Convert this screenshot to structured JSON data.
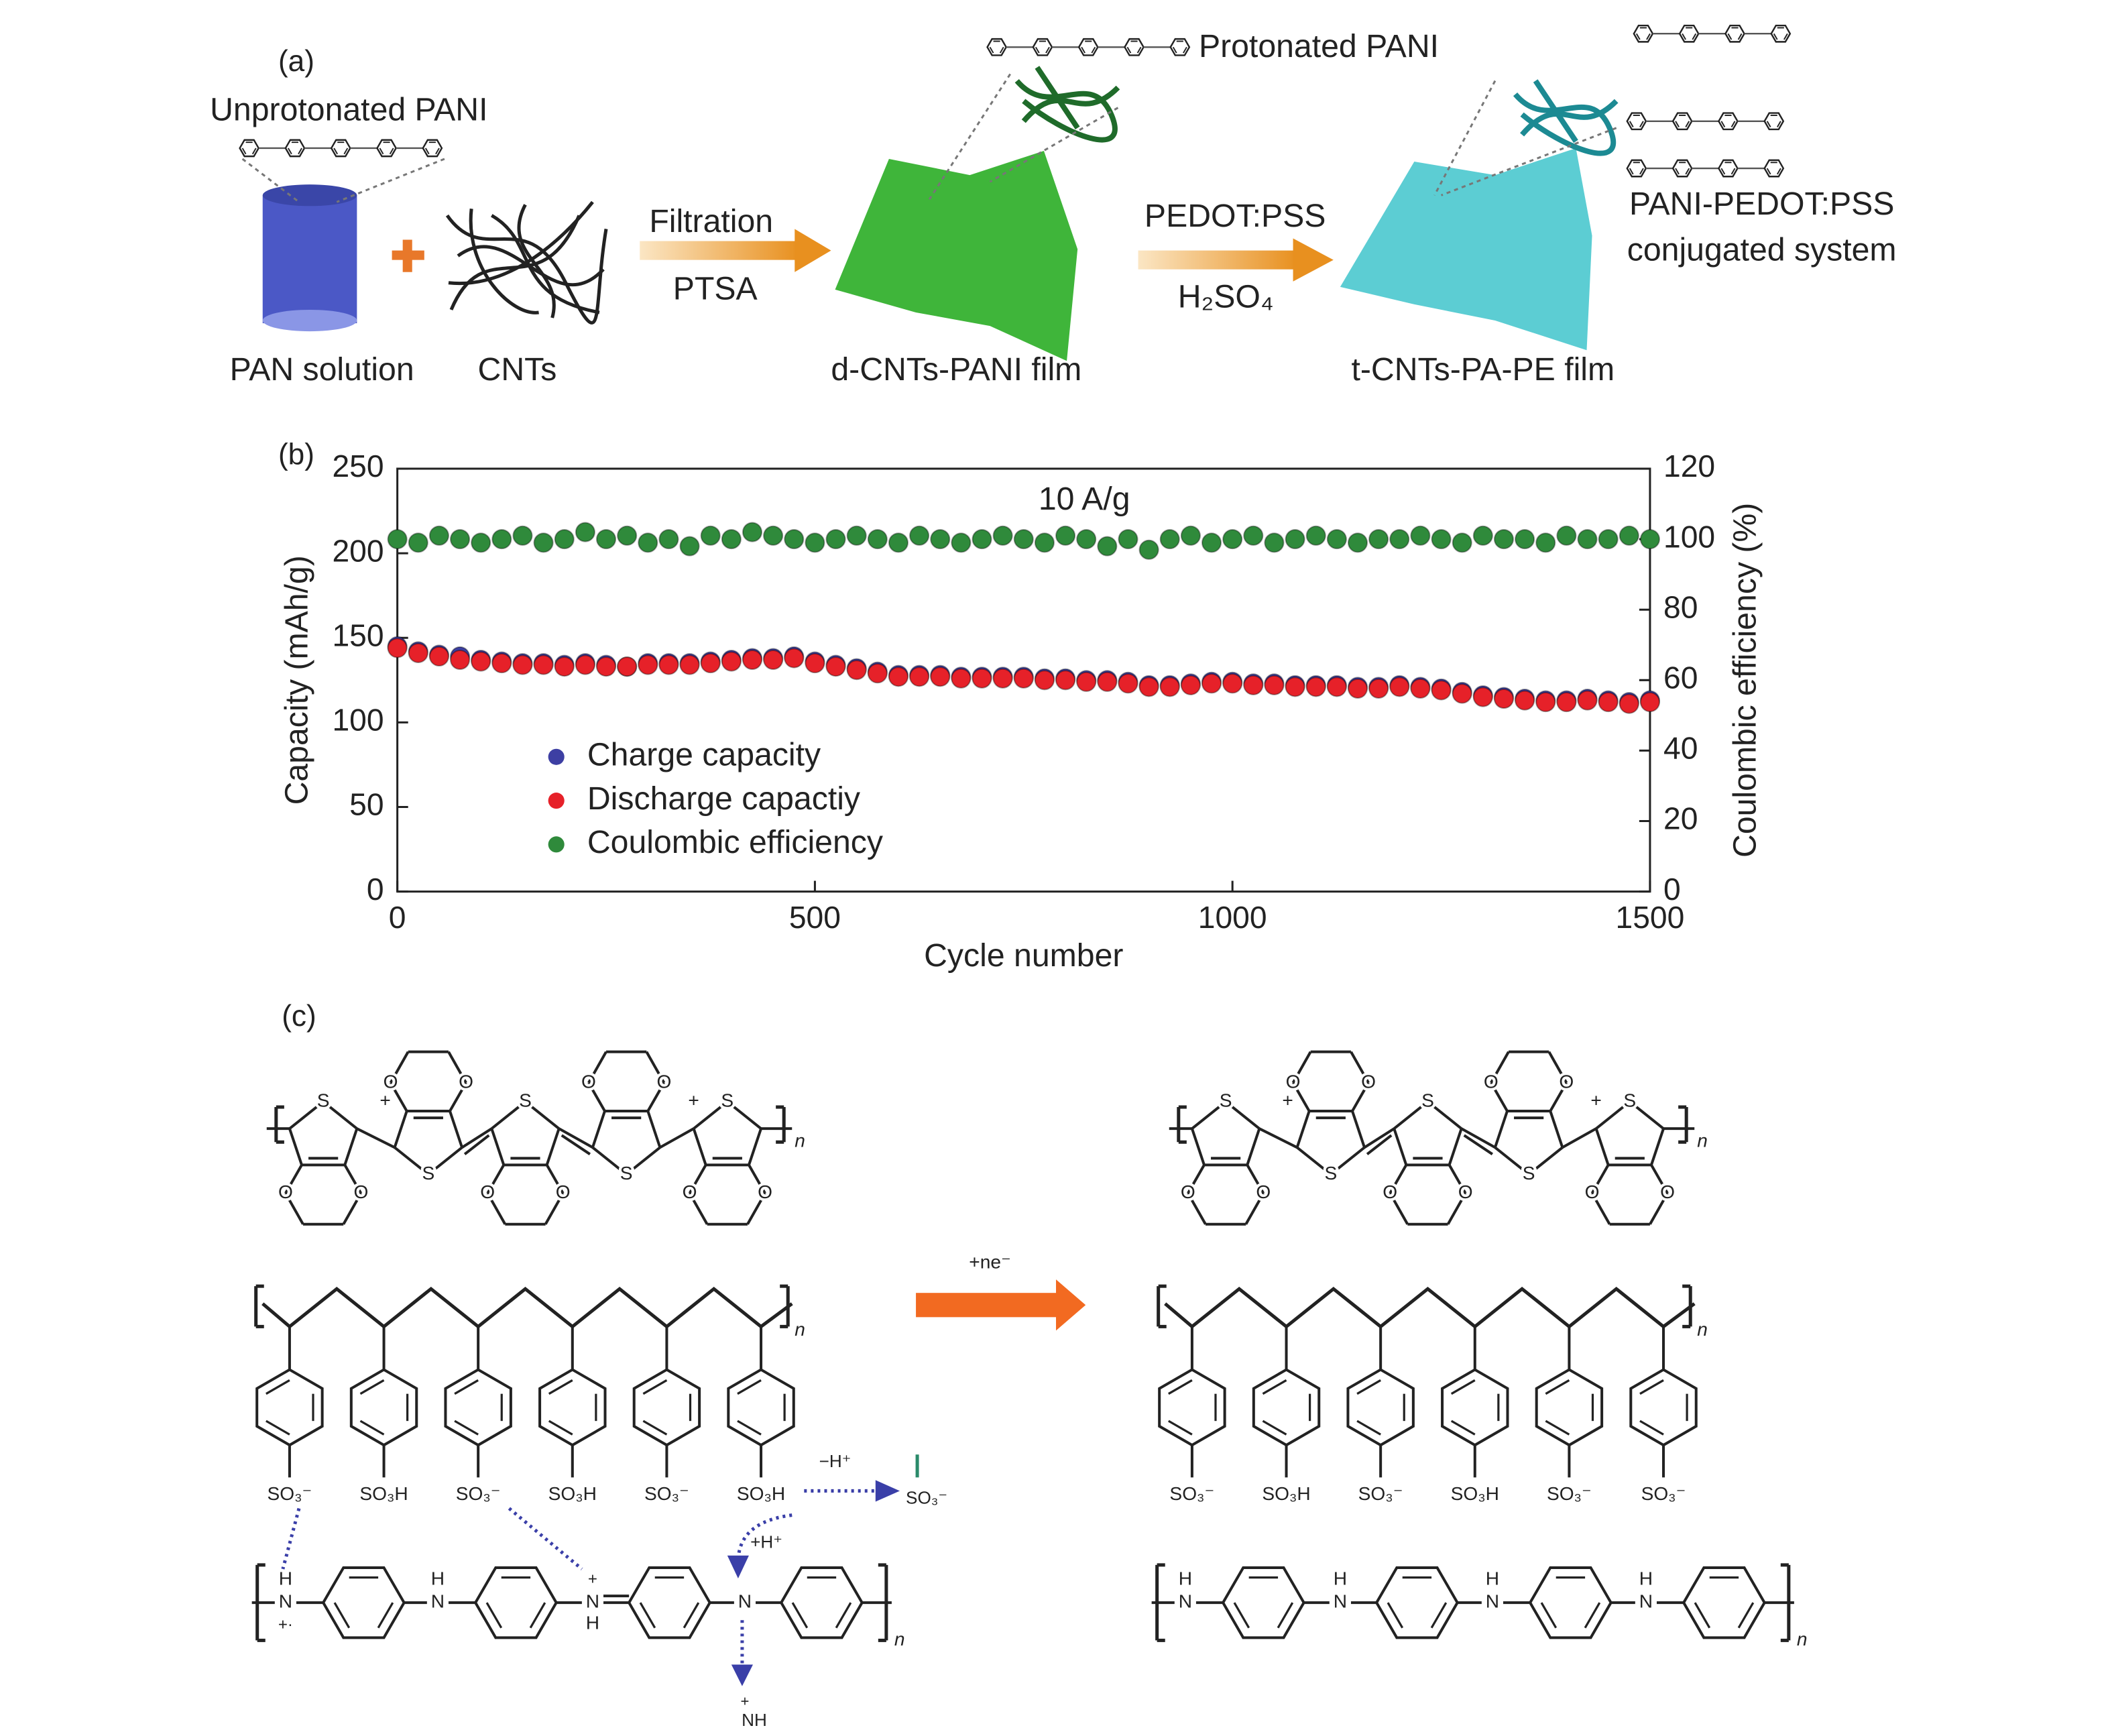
{
  "panel_a": {
    "label": "(a)",
    "unprotonated": "Unprotonated PANI",
    "pan_solution": "PAN solution",
    "cnts": "CNTs",
    "filtration": "Filtration",
    "ptsa": "PTSA",
    "protonated": "Protonated PANI",
    "d_film": "d-CNTs-PANI film",
    "pedot_pss": "PEDOT:PSS",
    "h2so4": "H₂SO₄",
    "t_film": "t-CNTs-PA-PE film",
    "system_1": "PANI-PEDOT:PSS",
    "system_2": "conjugated system"
  },
  "panel_b": {
    "label": "(b)"
  },
  "chart_data": {
    "type": "scatter",
    "annotation": "10 A/g",
    "xlabel": "Cycle number",
    "ylabel": "Capacity (mAh/g)",
    "y2label": "Coulombic efficiency (%)",
    "xlim": [
      0,
      1500
    ],
    "xticks": [
      0,
      500,
      1000,
      1500
    ],
    "ylim": [
      0,
      250
    ],
    "yticks": [
      0,
      50,
      100,
      150,
      200,
      250
    ],
    "y2lim": [
      0,
      120
    ],
    "y2ticks": [
      0,
      20,
      40,
      60,
      80,
      100,
      120
    ],
    "grid": false,
    "legend": "lower left",
    "x": [
      0,
      25,
      50,
      75,
      100,
      125,
      150,
      175,
      200,
      225,
      250,
      275,
      300,
      325,
      350,
      375,
      400,
      425,
      450,
      475,
      500,
      525,
      550,
      575,
      600,
      625,
      650,
      675,
      700,
      725,
      750,
      775,
      800,
      825,
      850,
      875,
      900,
      925,
      950,
      975,
      1000,
      1025,
      1050,
      1075,
      1100,
      1125,
      1150,
      1175,
      1200,
      1225,
      1250,
      1275,
      1300,
      1325,
      1350,
      1375,
      1400,
      1425,
      1450,
      1475,
      1500
    ],
    "series": [
      {
        "name": "Charge capacity",
        "color": "#3d3fa3",
        "values": [
          145,
          142,
          140,
          139,
          137,
          136,
          135,
          135,
          134,
          135,
          134,
          133,
          135,
          135,
          135,
          136,
          137,
          138,
          138,
          139,
          136,
          134,
          132,
          130,
          128,
          128,
          128,
          127,
          127,
          127,
          127,
          126,
          126,
          125,
          125,
          124,
          122,
          122,
          123,
          124,
          124,
          123,
          123,
          122,
          122,
          122,
          121,
          121,
          122,
          121,
          120,
          118,
          116,
          115,
          114,
          113,
          113,
          114,
          113,
          112,
          113
        ]
      },
      {
        "name": "Discharge capactiy",
        "color": "#e62129",
        "values": [
          144,
          141,
          139,
          137,
          136,
          135,
          134,
          134,
          133,
          134,
          133,
          133,
          134,
          134,
          134,
          135,
          136,
          137,
          137,
          138,
          135,
          133,
          131,
          129,
          127,
          127,
          127,
          126,
          126,
          126,
          126,
          125,
          125,
          124,
          124,
          123,
          121,
          121,
          122,
          123,
          123,
          122,
          122,
          121,
          121,
          121,
          120,
          120,
          121,
          120,
          119,
          117,
          115,
          114,
          113,
          112,
          112,
          113,
          112,
          111,
          112
        ]
      },
      {
        "name": "Coulombic efficiency",
        "color": "#2f8a3b",
        "axis": "y2",
        "values": [
          100,
          99,
          101,
          100,
          99,
          100,
          101,
          99,
          100,
          102,
          100,
          101,
          99,
          100,
          98,
          101,
          100,
          102,
          101,
          100,
          99,
          100,
          101,
          100,
          99,
          101,
          100,
          99,
          100,
          101,
          100,
          99,
          101,
          100,
          98,
          100,
          97,
          100,
          101,
          99,
          100,
          101,
          99,
          100,
          101,
          100,
          99,
          100,
          100,
          101,
          100,
          99,
          101,
          100,
          100,
          99,
          101,
          100,
          100,
          101,
          100
        ]
      }
    ]
  },
  "panel_c": {
    "label": "(c)",
    "sulfur": "S",
    "oxygen": "O",
    "plus": "+",
    "repeat": "n",
    "nitrogen": "N",
    "hydrogen": "H",
    "radical_cation": "+·",
    "iminium": "NH",
    "reduction": "+ne⁻",
    "deprotonation": "−H⁺",
    "protonation": "+H⁺",
    "released": "SO₃⁻",
    "pss_left": [
      "SO₃⁻",
      "SO₃H",
      "SO₃⁻",
      "SO₃H",
      "SO₃⁻",
      "SO₃H"
    ],
    "pss_right": [
      "SO₃⁻",
      "SO₃H",
      "SO₃⁻",
      "SO₃H",
      "SO₃⁻",
      "SO₃⁻"
    ]
  }
}
